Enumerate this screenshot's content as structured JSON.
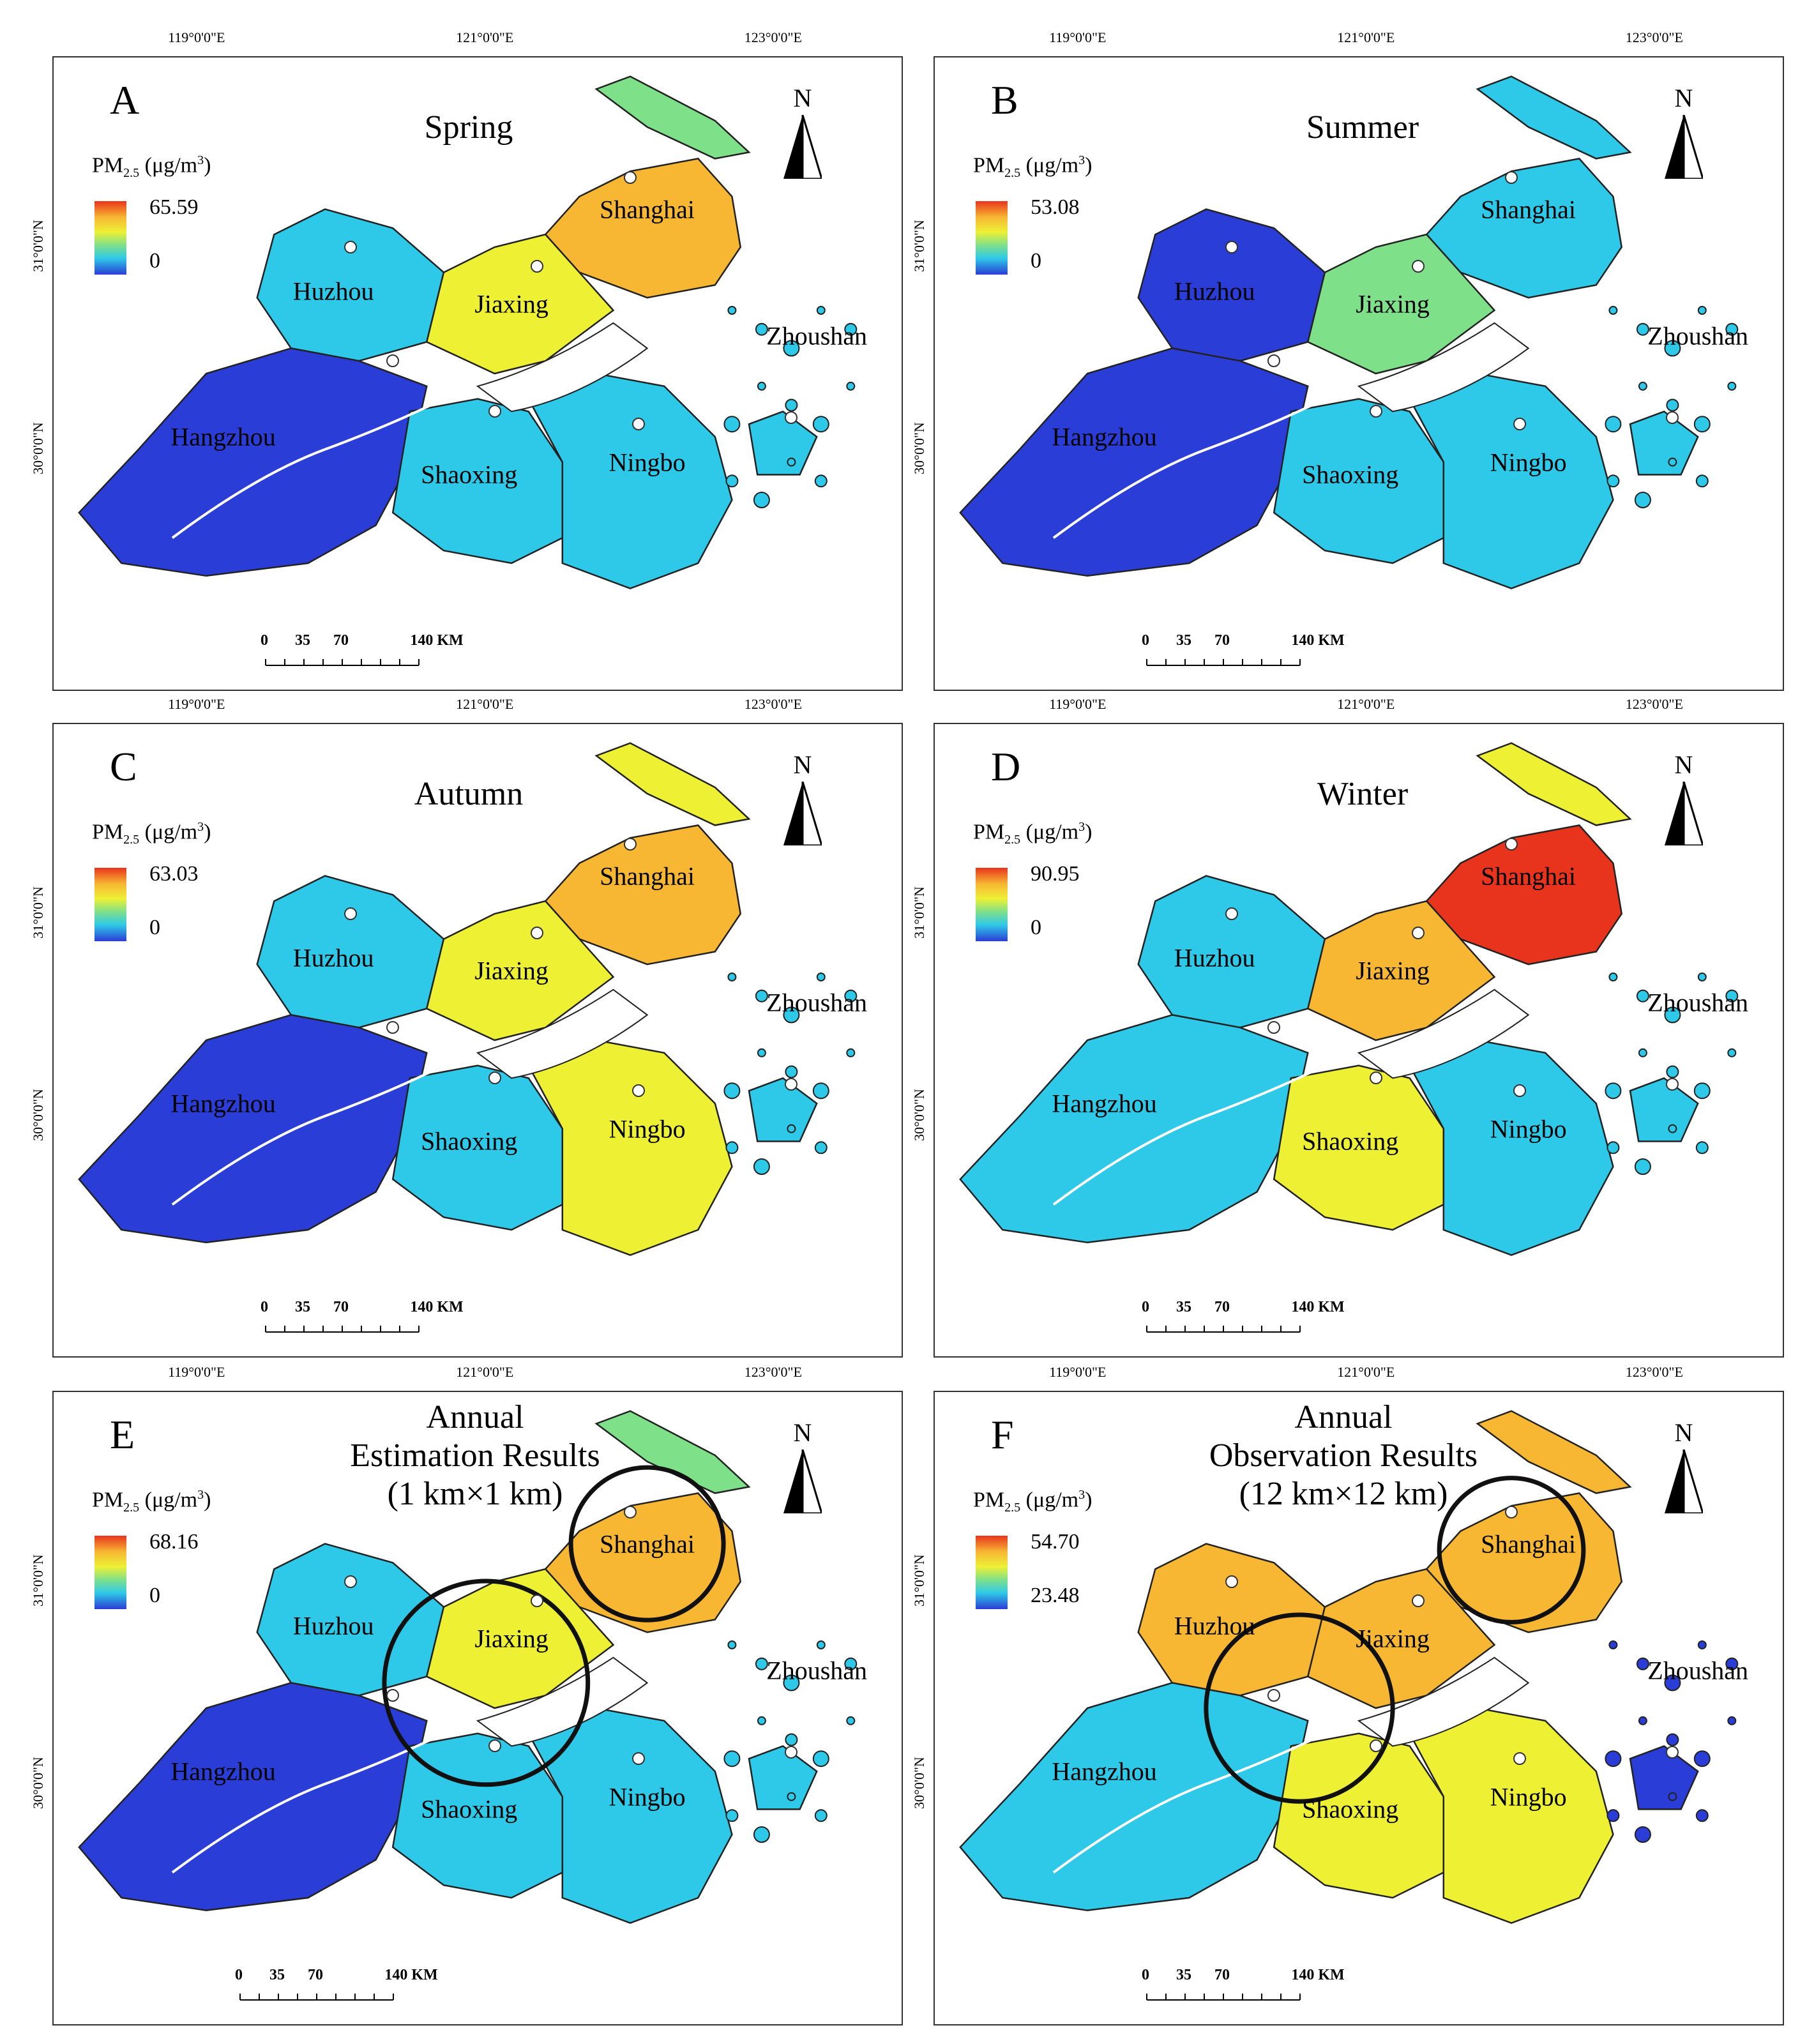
{
  "axes": {
    "longitude_labels": [
      "119°0'0\"E",
      "121°0'0\"E",
      "123°0'0\"E"
    ],
    "latitude_labels": [
      "31°0'0\"N",
      "30°0'0\"N"
    ]
  },
  "legend_label": {
    "base": "PM",
    "sub": "2.5",
    "unit": " (μg/m",
    "sup": "3",
    "close": ")"
  },
  "north_label": "N",
  "scale": {
    "labels": [
      "0",
      "35",
      "70",
      "140 KM"
    ]
  },
  "cities": [
    "Shanghai",
    "Huzhou",
    "Jiaxing",
    "Hangzhou",
    "Shaoxing",
    "Ningbo",
    "Zhoushan"
  ],
  "panels": [
    {
      "letter": "A",
      "title": [
        "Spring"
      ],
      "max": "65.59",
      "min": "0",
      "scheme": "spring"
    },
    {
      "letter": "B",
      "title": [
        "Summer"
      ],
      "max": "53.08",
      "min": "0",
      "scheme": "summer"
    },
    {
      "letter": "C",
      "title": [
        "Autumn"
      ],
      "max": "63.03",
      "min": "0",
      "scheme": "autumn"
    },
    {
      "letter": "D",
      "title": [
        "Winter"
      ],
      "max": "90.95",
      "min": "0",
      "scheme": "winter"
    },
    {
      "letter": "E",
      "title": [
        "Annual",
        "Estimation Results",
        "(1 km×1 km)"
      ],
      "max": "68.16",
      "min": "0",
      "scheme": "annual-est"
    },
    {
      "letter": "F",
      "title": [
        "Annual",
        "Observation Results",
        "(12 km×12 km)"
      ],
      "max": "54.70",
      "min": "23.48",
      "scheme": "annual-obs"
    }
  ],
  "colors": {
    "high": "#e8341c",
    "upper": "#f7b733",
    "mid": "#eef034",
    "lower_mid": "#7fe08a",
    "low": "#2ec9e8",
    "lowest": "#2a3dd6",
    "boundary": "#222222",
    "river": "#ffffff"
  }
}
